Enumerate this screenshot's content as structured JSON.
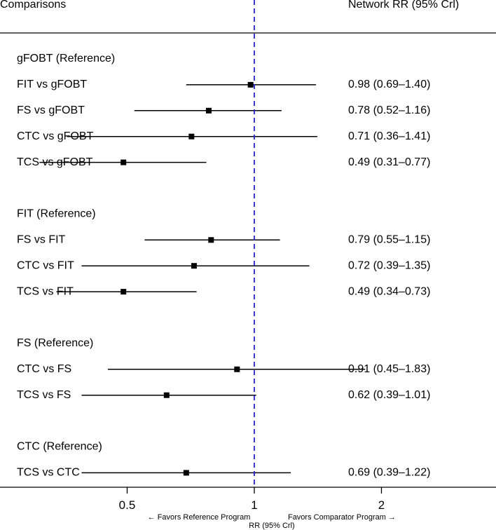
{
  "header": {
    "left": "Comparisons",
    "right": "Network RR (95% Crl)"
  },
  "chart_data": {
    "type": "forest",
    "x_scale": "log",
    "xlim": [
      0.31,
      2.0
    ],
    "reference_line": 1,
    "reference_line_color": "#2222cc",
    "marker_color": "#000000",
    "ticks": [
      {
        "value": 0.5,
        "label": "0.5"
      },
      {
        "value": 1,
        "label": "1"
      },
      {
        "value": 2,
        "label": "2"
      }
    ],
    "xlabel": "RR (95% Crl)",
    "favors_left": "← Favors Reference Program",
    "favors_right": "Favors Comparator Program →",
    "groups": [
      {
        "reference": "gFOBT (Reference)",
        "comparisons": [
          {
            "label": "FIT vs gFOBT",
            "rr": 0.98,
            "lo": 0.69,
            "hi": 1.4,
            "text": "0.98 (0.69–1.40)"
          },
          {
            "label": "FS vs gFOBT",
            "rr": 0.78,
            "lo": 0.52,
            "hi": 1.16,
            "text": "0.78 (0.52–1.16)"
          },
          {
            "label": "CTC vs gFOBT",
            "rr": 0.71,
            "lo": 0.36,
            "hi": 1.41,
            "text": "0.71 (0.36–1.41)"
          },
          {
            "label": "TCS vs gFOBT",
            "rr": 0.49,
            "lo": 0.31,
            "hi": 0.77,
            "text": "0.49 (0.31–0.77)"
          }
        ]
      },
      {
        "reference": "FIT (Reference)",
        "comparisons": [
          {
            "label": "FS vs FIT",
            "rr": 0.79,
            "lo": 0.55,
            "hi": 1.15,
            "text": "0.79 (0.55–1.15)"
          },
          {
            "label": "CTC vs FIT",
            "rr": 0.72,
            "lo": 0.39,
            "hi": 1.35,
            "text": "0.72 (0.39–1.35)"
          },
          {
            "label": "TCS vs FIT",
            "rr": 0.49,
            "lo": 0.34,
            "hi": 0.73,
            "text": "0.49 (0.34–0.73)"
          }
        ]
      },
      {
        "reference": "FS (Reference)",
        "comparisons": [
          {
            "label": "CTC vs FS",
            "rr": 0.91,
            "lo": 0.45,
            "hi": 1.83,
            "text": "0.91 (0.45–1.83)"
          },
          {
            "label": "TCS vs FS",
            "rr": 0.62,
            "lo": 0.39,
            "hi": 1.01,
            "text": "0.62 (0.39–1.01)"
          }
        ]
      },
      {
        "reference": "CTC (Reference)",
        "comparisons": [
          {
            "label": "TCS vs CTC",
            "rr": 0.69,
            "lo": 0.39,
            "hi": 1.22,
            "text": "0.69 (0.39–1.22)"
          }
        ]
      }
    ]
  }
}
